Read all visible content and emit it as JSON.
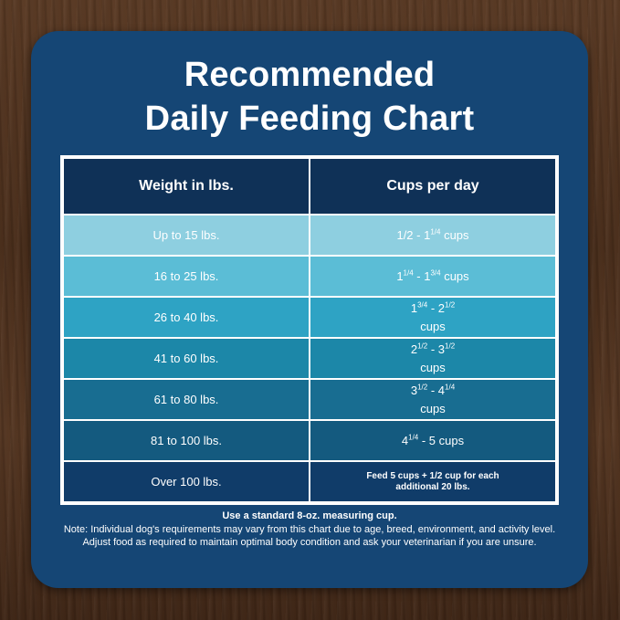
{
  "title": {
    "line1": "Recommended",
    "line2": "Daily Feeding Chart"
  },
  "table": {
    "headers": {
      "weight": "Weight in lbs.",
      "cups": "Cups per day"
    },
    "rows": [
      {
        "weight": "Up to 15 lbs.",
        "cups_a": "1/2 - 1",
        "cups_sup1": "1/4",
        "cups_b": " cups",
        "cups_sup2": "",
        "cups_c": "",
        "bg": "#8ecfe0"
      },
      {
        "weight": "16 to 25 lbs.",
        "cups_a": "1",
        "cups_sup1": "1/4",
        "cups_b": " - 1",
        "cups_sup2": "3/4",
        "cups_c": " cups",
        "bg": "#5bbdd6"
      },
      {
        "weight": "26 to 40 lbs.",
        "cups_a": "1",
        "cups_sup1": "3/4",
        "cups_b": " - 2",
        "cups_sup2": "1/2",
        "cups_c": " cups",
        "bg": "#2ea3c4"
      },
      {
        "weight": "41 to 60 lbs.",
        "cups_a": "2",
        "cups_sup1": "1/2",
        "cups_b": " - 3",
        "cups_sup2": "1/2",
        "cups_c": " cups",
        "bg": "#1c87a8"
      },
      {
        "weight": "61 to 80 lbs.",
        "cups_a": "3",
        "cups_sup1": "1/2",
        "cups_b": " - 4",
        "cups_sup2": "1/4",
        "cups_c": " cups",
        "bg": "#186d91"
      },
      {
        "weight": "81 to 100 lbs.",
        "cups_a": "4",
        "cups_sup1": "1/4",
        "cups_b": " - 5 cups",
        "cups_sup2": "",
        "cups_c": "",
        "bg": "#145a7f"
      },
      {
        "weight": "Over 100 lbs.",
        "note": "Feed 5 cups + 1/2 cup for each additional 20 lbs.",
        "bg": "#103c69"
      }
    ]
  },
  "footer": {
    "instruction": "Use a standard 8-oz. measuring cup.",
    "note": "Note: Individual dog's requirements may vary from this chart due to age, breed, environment, and activity level. Adjust food as required to maintain optimal body condition and ask your veterinarian if you are unsure."
  }
}
